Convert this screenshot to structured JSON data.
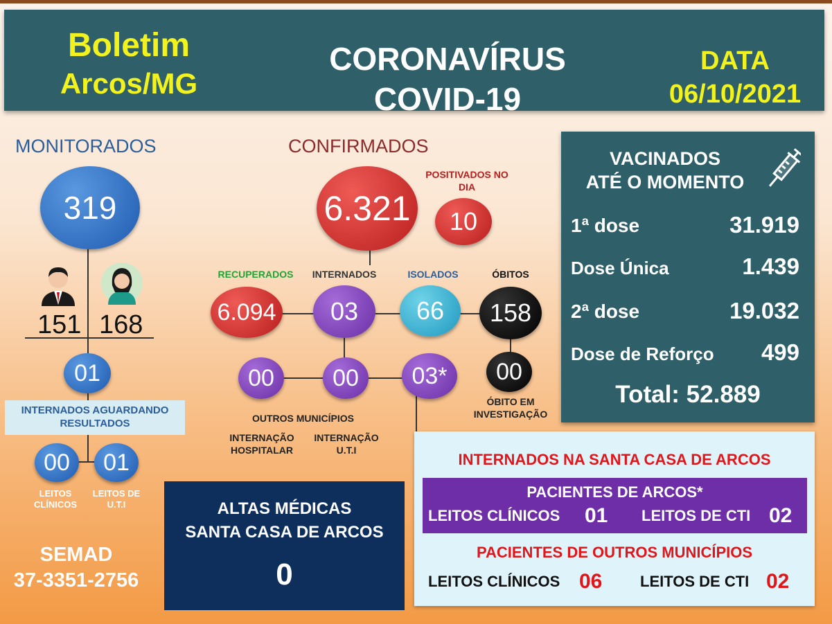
{
  "header": {
    "boletim": "Boletim",
    "city": "Arcos/MG",
    "title1": "CORONAVÍRUS",
    "title2": "COVID-19",
    "date_label": "DATA",
    "date_value": "06/10/2021"
  },
  "monitorados": {
    "title": "MONITORADOS",
    "total": "319",
    "male": "151",
    "female": "168",
    "internados": "01",
    "internados_label": "INTERNADOS AGUARDANDO RESULTADOS",
    "leitos_clinicos": "00",
    "leitos_uti": "01",
    "leitos_clinicos_label": "LEITOS CLÍNICOS",
    "leitos_uti_label": "LEITOS DE U.T.I"
  },
  "confirmados": {
    "title": "CONFIRMADOS",
    "total": "6.321",
    "positivados_label": "POSITIVADOS NO DIA",
    "positivados": "10",
    "recuperados_label": "RECUPERADOS",
    "recuperados": "6.094",
    "internados_label": "INTERNADOS",
    "internados": "03",
    "isolados_label": "ISOLADOS",
    "isolados": "66",
    "obitos_label": "ÓBITOS",
    "obitos": "158",
    "outros_municipios": "00",
    "internacao_hospitalar": "00",
    "internacao_uti": "03*",
    "obito_investigacao": "00",
    "obito_investigacao_label": "ÓBITO EM INVESTIGAÇÃO",
    "outros_municipios_label": "OUTROS MUNICÍPIOS",
    "internacao_hospitalar_label": "INTERNAÇÃO HOSPITALAR",
    "internacao_uti_label": "INTERNAÇÃO U.T.I"
  },
  "vacinados": {
    "title1": "VACINADOS",
    "title2": "ATÉ O MOMENTO",
    "rows": [
      {
        "label": "1ª dose",
        "value": "31.919"
      },
      {
        "label": "Dose Única",
        "value": "1.439"
      },
      {
        "label": "2ª dose",
        "value": "19.032"
      },
      {
        "label": "Dose de Reforço",
        "value": "499"
      }
    ],
    "total": "Total: 52.889"
  },
  "altas": {
    "title1": "ALTAS MÉDICAS",
    "title2": "SANTA CASA DE ARCOS",
    "value": "0"
  },
  "santa_casa": {
    "title": "INTERNADOS NA SANTA CASA DE ARCOS",
    "arcos_title": "PACIENTES DE ARCOS*",
    "arcos_clinicos_label": "LEITOS CLÍNICOS",
    "arcos_clinicos": "01",
    "arcos_cti_label": "LEITOS DE CTI",
    "arcos_cti": "02",
    "outros_title": "PACIENTES DE OUTROS MUNICÍPIOS",
    "outros_clinicos_label": "LEITOS CLÍNICOS",
    "outros_clinicos": "06",
    "outros_cti_label": "LEITOS DE CTI",
    "outros_cti": "02"
  },
  "footer": {
    "semad": "SEMAD",
    "phone": "37-3351-2756"
  },
  "colors": {
    "header_bg": "#2f6069",
    "yellow": "#f2f21e",
    "red_title": "#e0161a",
    "blue_title": "#2b5d9a",
    "dark_red_title": "#8b2b2b"
  }
}
